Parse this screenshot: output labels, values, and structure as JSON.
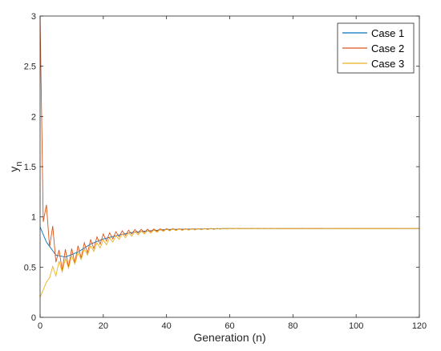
{
  "chart_data": {
    "type": "line",
    "title": "",
    "xlabel": "Generation (n)",
    "ylabel_main": "y",
    "ylabel_sub": "n",
    "xlim": [
      0,
      120
    ],
    "ylim": [
      0,
      3
    ],
    "xticks": [
      0,
      20,
      40,
      60,
      80,
      100,
      120
    ],
    "yticks": [
      0,
      0.5,
      1,
      1.5,
      2,
      2.5,
      3
    ],
    "ytick_labels": [
      "0",
      "0.5",
      "1",
      "1.5",
      "2",
      "2.5",
      "3"
    ],
    "grid": false,
    "legend": "top-right",
    "n_max": 120,
    "steady_state": 0.884,
    "series": [
      {
        "name": "Case 1",
        "color": "#0072BD",
        "y0": 0.9,
        "anchors": [
          [
            0,
            0.9
          ],
          [
            2,
            0.75
          ],
          [
            5,
            0.62
          ],
          [
            8,
            0.6
          ],
          [
            12,
            0.65
          ],
          [
            16,
            0.73
          ],
          [
            20,
            0.78
          ],
          [
            25,
            0.82
          ],
          [
            30,
            0.85
          ],
          [
            40,
            0.875
          ],
          [
            60,
            0.884
          ],
          [
            120,
            0.884
          ]
        ],
        "osc_amp": 0.0,
        "osc_decay": 1.0
      },
      {
        "name": "Case 2",
        "color": "#D95319",
        "y0": 3.0,
        "anchors": [
          [
            0,
            3.0
          ],
          [
            1,
            0.95
          ],
          [
            2,
            1.12
          ],
          [
            3,
            0.7
          ],
          [
            4,
            0.78
          ],
          [
            6,
            0.56
          ],
          [
            10,
            0.6
          ],
          [
            15,
            0.7
          ],
          [
            20,
            0.79
          ],
          [
            25,
            0.83
          ],
          [
            30,
            0.855
          ],
          [
            40,
            0.875
          ],
          [
            60,
            0.884
          ],
          [
            120,
            0.884
          ]
        ],
        "osc_amp": 0.13,
        "osc_decay": 0.93
      },
      {
        "name": "Case 3",
        "color": "#EDB120",
        "y0": 0.2,
        "anchors": [
          [
            0,
            0.2
          ],
          [
            2,
            0.35
          ],
          [
            5,
            0.48
          ],
          [
            10,
            0.56
          ],
          [
            15,
            0.66
          ],
          [
            20,
            0.74
          ],
          [
            25,
            0.8
          ],
          [
            30,
            0.835
          ],
          [
            40,
            0.87
          ],
          [
            60,
            0.884
          ],
          [
            120,
            0.884
          ]
        ],
        "osc_amp": 0.07,
        "osc_decay": 0.95
      }
    ]
  }
}
